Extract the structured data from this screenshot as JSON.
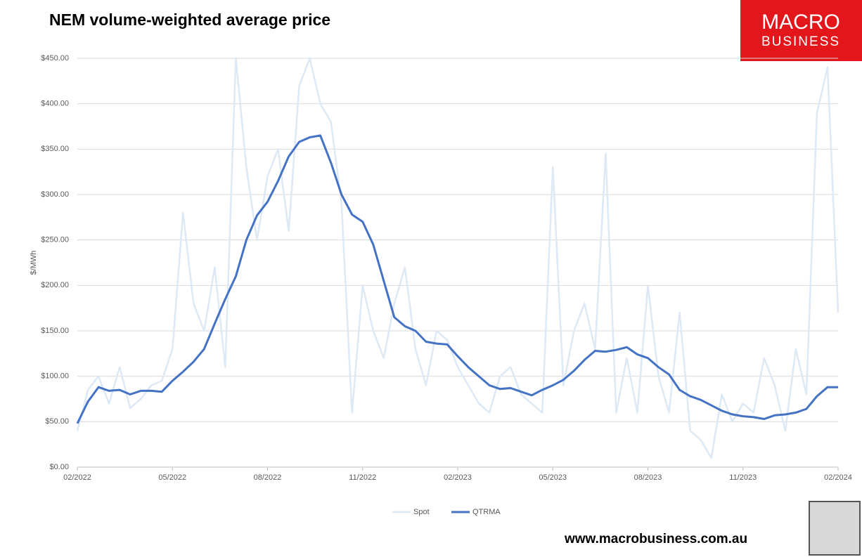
{
  "chart_data": {
    "type": "line",
    "title": "NEM volume-weighted average price",
    "y_label": "$/MWh",
    "categories": [
      "02/2022",
      null,
      null,
      null,
      null,
      null,
      null,
      null,
      null,
      "05/2022",
      null,
      null,
      null,
      null,
      null,
      null,
      null,
      null,
      "08/2022",
      null,
      null,
      null,
      null,
      null,
      null,
      null,
      null,
      "11/2022",
      null,
      null,
      null,
      null,
      null,
      null,
      null,
      null,
      "02/2023",
      null,
      null,
      null,
      null,
      null,
      null,
      null,
      null,
      "05/2023",
      null,
      null,
      null,
      null,
      null,
      null,
      null,
      null,
      "08/2023",
      null,
      null,
      null,
      null,
      null,
      null,
      null,
      null,
      "11/2023",
      null,
      null,
      null,
      null,
      null,
      null,
      null,
      null,
      "02/2024"
    ],
    "series": [
      {
        "name": "Spot",
        "color": "#dde9f5",
        "width": 2.5,
        "values": [
          40,
          85,
          100,
          70,
          110,
          65,
          75,
          90,
          95,
          130,
          280,
          180,
          150,
          220,
          110,
          450,
          330,
          250,
          320,
          350,
          260,
          420,
          450,
          400,
          380,
          290,
          60,
          200,
          150,
          120,
          180,
          220,
          130,
          90,
          150,
          140,
          110,
          90,
          70,
          60,
          100,
          110,
          80,
          70,
          60,
          330,
          90,
          150,
          180,
          130,
          345,
          60,
          120,
          60,
          200,
          100,
          60,
          170,
          40,
          30,
          10,
          80,
          50,
          70,
          60,
          120,
          90,
          40,
          130,
          80,
          390,
          440,
          170
        ]
      },
      {
        "name": "QTRMA",
        "color": "#4472c4",
        "width": 3,
        "values": [
          48,
          72,
          88,
          84,
          85,
          80,
          84,
          84,
          83,
          95,
          105,
          116,
          130,
          158,
          185,
          210,
          250,
          277,
          292,
          315,
          342,
          358,
          363,
          365,
          335,
          300,
          278,
          270,
          245,
          205,
          165,
          155,
          150,
          138,
          136,
          135,
          122,
          110,
          100,
          90,
          86,
          87,
          83,
          79,
          85,
          90,
          96,
          106,
          118,
          128,
          127,
          129,
          132,
          124,
          120,
          110,
          102,
          85,
          78,
          74,
          68,
          62,
          58,
          56,
          55,
          53,
          57,
          58,
          60,
          64,
          78,
          88,
          88
        ]
      }
    ],
    "ylim": [
      0,
      450
    ],
    "yticks": [
      {
        "value": 0,
        "label": "$0.00"
      },
      {
        "value": 50,
        "label": "$50.00"
      },
      {
        "value": 100,
        "label": "$100.00"
      },
      {
        "value": 150,
        "label": "$150.00"
      },
      {
        "value": 200,
        "label": "$200.00"
      },
      {
        "value": 250,
        "label": "$250.00"
      },
      {
        "value": 300,
        "label": "$300.00"
      },
      {
        "value": 350,
        "label": "$350.00"
      },
      {
        "value": 400,
        "label": "$400.00"
      },
      {
        "value": 450,
        "label": "$450.00"
      }
    ],
    "grid": true,
    "legend": "bottom"
  },
  "branding": {
    "logo_top": "MACRO",
    "logo_bottom": "BUSINESS",
    "url": "www.macrobusiness.com.au"
  }
}
